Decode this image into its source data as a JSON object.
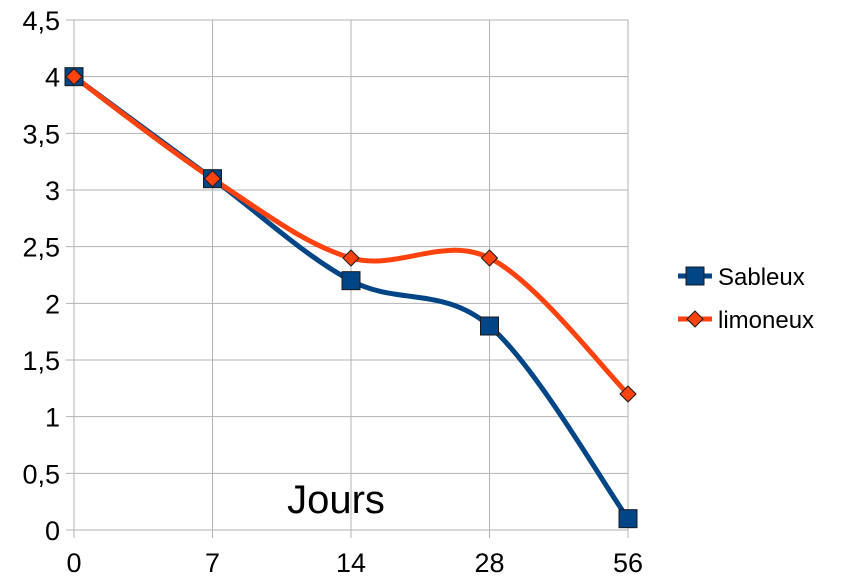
{
  "chart_data": {
    "type": "line",
    "categories": [
      "0",
      "7",
      "14",
      "28",
      "56"
    ],
    "series": [
      {
        "name": "Sableux",
        "values": [
          4,
          3.1,
          2.2,
          1.8,
          0.1
        ],
        "color": "#004586",
        "marker": "square"
      },
      {
        "name": "limoneux",
        "values": [
          4,
          3.1,
          2.4,
          2.4,
          1.2
        ],
        "color": "#ff420e",
        "marker": "diamond"
      }
    ],
    "y_ticks": [
      "0",
      "0,5",
      "1",
      "1,5",
      "2",
      "2,5",
      "3",
      "3,5",
      "4",
      "4,5"
    ],
    "ylim": [
      0,
      4.5
    ],
    "grid": true,
    "smooth": true,
    "legend_position": "right",
    "annotation": "Jours"
  }
}
